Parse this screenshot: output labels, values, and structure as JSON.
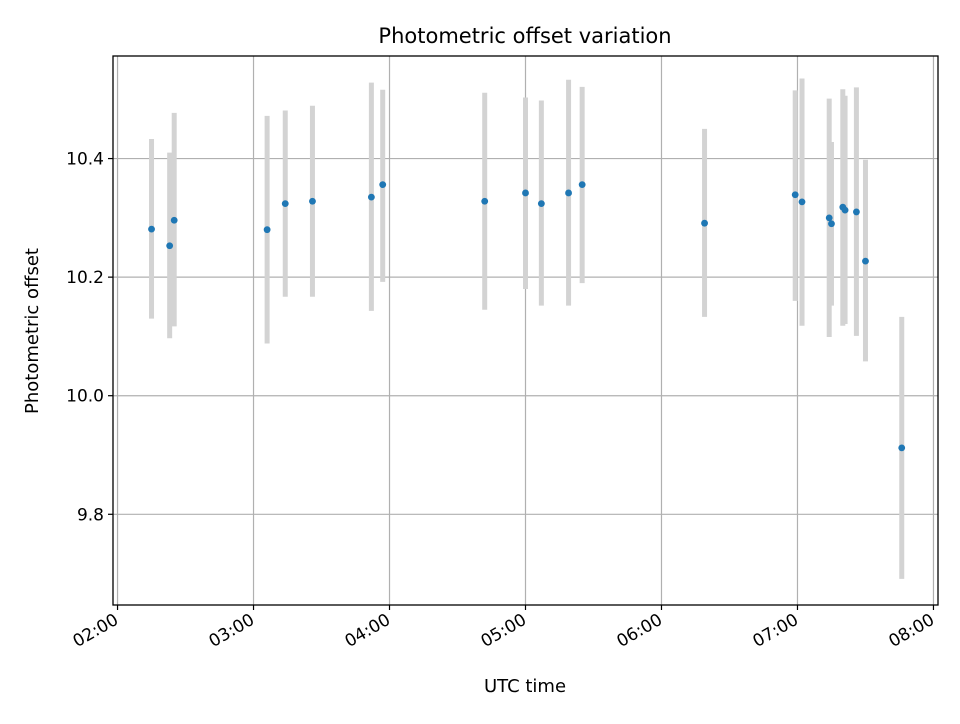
{
  "chart_data": {
    "type": "scatter",
    "title": "Photometric offset variation",
    "xlabel": "UTC time",
    "ylabel": "Photometric offset",
    "x_tick_labels": [
      "02:00",
      "03:00",
      "04:00",
      "05:00",
      "06:00",
      "07:00",
      "08:00"
    ],
    "y_tick_labels": [
      "9.8",
      "10.0",
      "10.2",
      "10.4"
    ],
    "x_ticks_hours": [
      2,
      3,
      4,
      5,
      6,
      7,
      8
    ],
    "y_ticks": [
      9.8,
      10.0,
      10.2,
      10.4
    ],
    "xlim": [
      "01:58",
      "08:02"
    ],
    "ylim": [
      9.647,
      10.573
    ],
    "grid": true,
    "colors": {
      "points": "#1f77b4",
      "error_bars": "#d3d3d3",
      "grid": "#b0b0b0",
      "axes": "#000000"
    },
    "series": [
      {
        "points": [
          {
            "x": "02:15",
            "y": 10.281,
            "ylow": 10.13,
            "yhigh": 10.433
          },
          {
            "x": "02:23",
            "y": 10.253,
            "ylow": 10.097,
            "yhigh": 10.41
          },
          {
            "x": "02:25",
            "y": 10.296,
            "ylow": 10.117,
            "yhigh": 10.477
          },
          {
            "x": "03:06",
            "y": 10.28,
            "ylow": 10.088,
            "yhigh": 10.472
          },
          {
            "x": "03:14",
            "y": 10.324,
            "ylow": 10.167,
            "yhigh": 10.481
          },
          {
            "x": "03:26",
            "y": 10.328,
            "ylow": 10.167,
            "yhigh": 10.489
          },
          {
            "x": "03:52",
            "y": 10.335,
            "ylow": 10.143,
            "yhigh": 10.528
          },
          {
            "x": "03:57",
            "y": 10.356,
            "ylow": 10.192,
            "yhigh": 10.516
          },
          {
            "x": "04:42",
            "y": 10.328,
            "ylow": 10.145,
            "yhigh": 10.511
          },
          {
            "x": "05:00",
            "y": 10.342,
            "ylow": 10.18,
            "yhigh": 10.503
          },
          {
            "x": "05:07",
            "y": 10.324,
            "ylow": 10.152,
            "yhigh": 10.498
          },
          {
            "x": "05:19",
            "y": 10.342,
            "ylow": 10.152,
            "yhigh": 10.533
          },
          {
            "x": "05:25",
            "y": 10.356,
            "ylow": 10.19,
            "yhigh": 10.521
          },
          {
            "x": "06:19",
            "y": 10.291,
            "ylow": 10.133,
            "yhigh": 10.45
          },
          {
            "x": "06:59",
            "y": 10.339,
            "ylow": 10.16,
            "yhigh": 10.515
          },
          {
            "x": "07:02",
            "y": 10.327,
            "ylow": 10.118,
            "yhigh": 10.535
          },
          {
            "x": "07:14",
            "y": 10.3,
            "ylow": 10.099,
            "yhigh": 10.501
          },
          {
            "x": "07:15",
            "y": 10.29,
            "ylow": 10.152,
            "yhigh": 10.428
          },
          {
            "x": "07:20",
            "y": 10.318,
            "ylow": 10.118,
            "yhigh": 10.517
          },
          {
            "x": "07:21",
            "y": 10.313,
            "ylow": 10.121,
            "yhigh": 10.506
          },
          {
            "x": "07:26",
            "y": 10.31,
            "ylow": 10.101,
            "yhigh": 10.52
          },
          {
            "x": "07:30",
            "y": 10.227,
            "ylow": 10.058,
            "yhigh": 10.398
          },
          {
            "x": "07:46",
            "y": 9.912,
            "ylow": 9.691,
            "yhigh": 10.133
          }
        ]
      }
    ]
  }
}
